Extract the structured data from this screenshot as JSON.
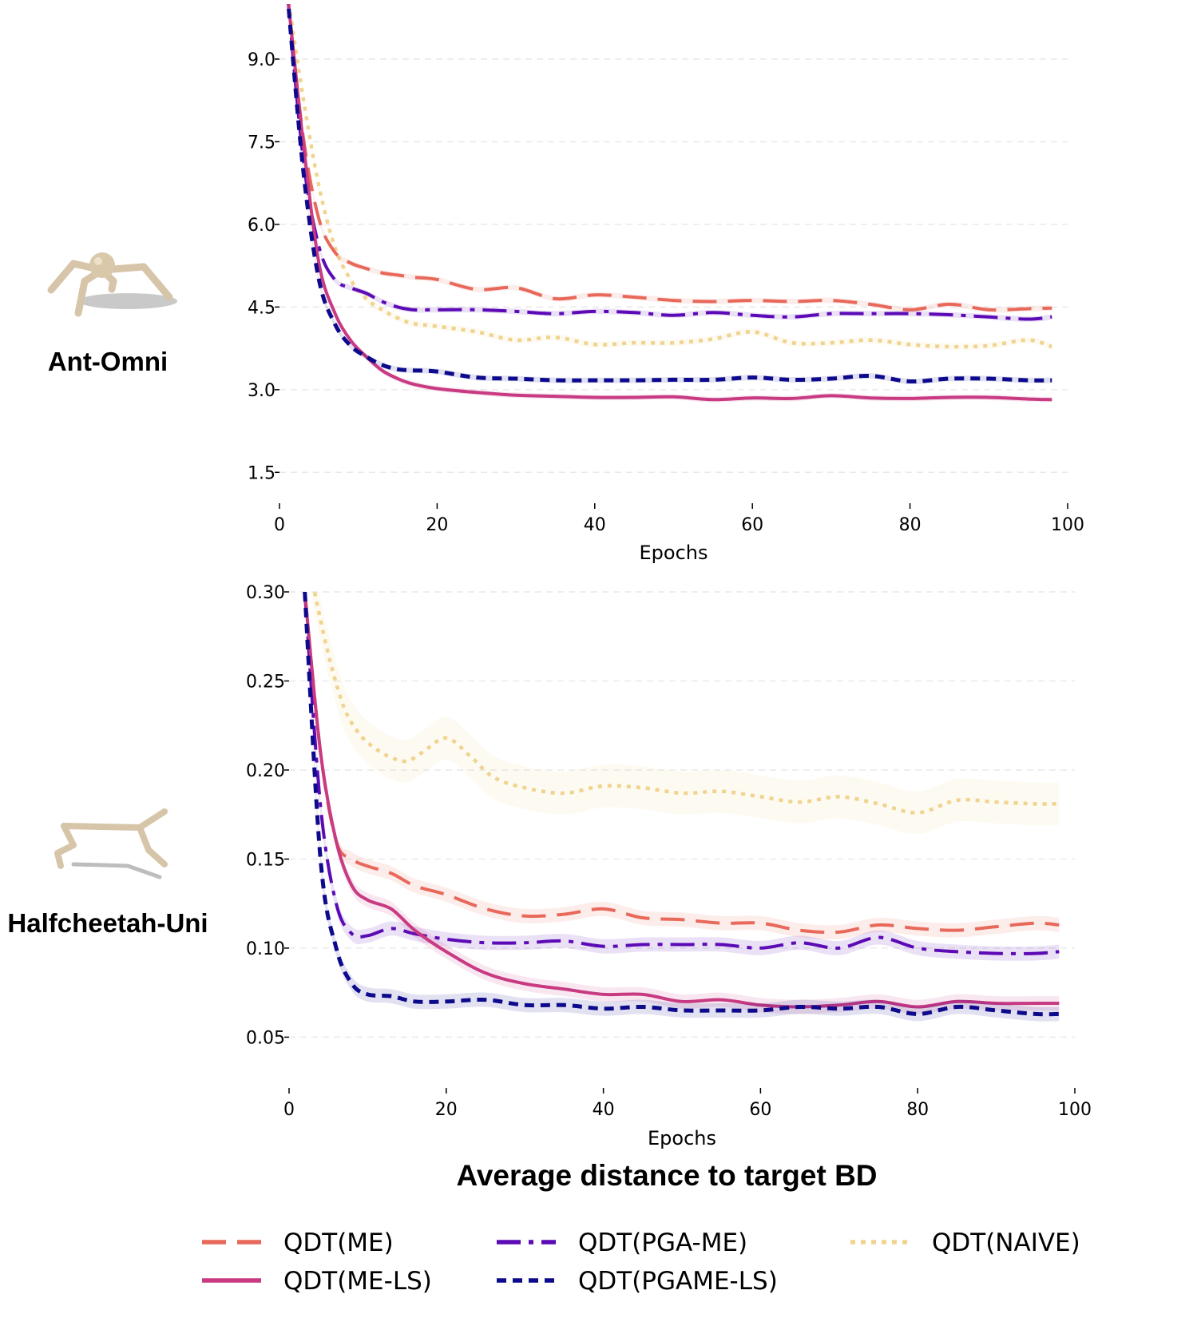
{
  "title": "Average distance to target BD",
  "legend": {
    "items": [
      {
        "key": "me",
        "label": "QDT(ME)"
      },
      {
        "key": "pga",
        "label": "QDT(PGA-ME)"
      },
      {
        "key": "naive",
        "label": "QDT(NAIVE)"
      },
      {
        "key": "mels",
        "label": "QDT(ME-LS)"
      },
      {
        "key": "pgamels",
        "label": "QDT(PGAME-LS)"
      }
    ]
  },
  "colors": {
    "me": "#e8685a",
    "pga": "#5b0ab5",
    "naive": "#f0d38e",
    "mels": "#c83a82",
    "pgamels": "#0d0a8c"
  },
  "chart_data": [
    {
      "type": "line",
      "env_label": "Ant-Omni",
      "xlabel": "Epochs",
      "ylabel": "",
      "xlim": [
        0,
        100
      ],
      "ylim": [
        1.2,
        10.0
      ],
      "xticks": [
        0,
        20,
        40,
        60,
        80,
        100
      ],
      "yticks": [
        1.5,
        3.0,
        4.5,
        6.0,
        7.5,
        9.0
      ],
      "ytick_labels": [
        "1.5",
        "3.0",
        "4.5",
        "6.0",
        "7.5",
        "9.0"
      ],
      "series": [
        {
          "key": "naive",
          "name": "QDT(NAIVE)",
          "band": 0.06,
          "x": [
            1,
            3,
            5,
            7,
            9,
            11,
            13,
            15,
            17,
            20,
            25,
            30,
            35,
            40,
            45,
            50,
            55,
            60,
            65,
            70,
            75,
            80,
            85,
            90,
            95,
            98
          ],
          "y": [
            10.2,
            8.3,
            6.7,
            5.6,
            5.0,
            4.65,
            4.45,
            4.3,
            4.2,
            4.15,
            4.05,
            3.9,
            3.95,
            3.82,
            3.85,
            3.85,
            3.92,
            4.05,
            3.85,
            3.85,
            3.9,
            3.82,
            3.78,
            3.8,
            3.9,
            3.78
          ]
        },
        {
          "key": "me",
          "name": "QDT(ME)",
          "band": 0.05,
          "x": [
            1,
            3,
            5,
            7,
            9,
            11,
            13,
            15,
            17,
            20,
            25,
            30,
            35,
            40,
            45,
            50,
            55,
            60,
            65,
            70,
            75,
            80,
            85,
            90,
            95,
            98
          ],
          "y": [
            10.2,
            7.6,
            6.1,
            5.5,
            5.3,
            5.2,
            5.12,
            5.08,
            5.04,
            5.0,
            4.82,
            4.85,
            4.65,
            4.72,
            4.68,
            4.62,
            4.6,
            4.62,
            4.6,
            4.62,
            4.55,
            4.45,
            4.55,
            4.45,
            4.47,
            4.48
          ]
        },
        {
          "key": "pga",
          "name": "QDT(PGA-ME)",
          "band": 0.05,
          "x": [
            1,
            3,
            5,
            7,
            9,
            11,
            13,
            15,
            17,
            20,
            25,
            30,
            35,
            40,
            45,
            50,
            55,
            60,
            65,
            70,
            75,
            80,
            85,
            90,
            95,
            98
          ],
          "y": [
            10.2,
            7.2,
            5.6,
            5.0,
            4.85,
            4.75,
            4.6,
            4.5,
            4.45,
            4.45,
            4.45,
            4.42,
            4.38,
            4.42,
            4.4,
            4.35,
            4.4,
            4.35,
            4.32,
            4.38,
            4.38,
            4.38,
            4.36,
            4.32,
            4.28,
            4.32
          ]
        },
        {
          "key": "mels",
          "name": "QDT(ME-LS)",
          "band": 0.05,
          "x": [
            1,
            3,
            5,
            7,
            9,
            11,
            13,
            15,
            17,
            20,
            25,
            30,
            35,
            40,
            45,
            50,
            55,
            60,
            65,
            70,
            75,
            80,
            85,
            90,
            95,
            98
          ],
          "y": [
            10.2,
            7.5,
            5.3,
            4.4,
            3.9,
            3.6,
            3.35,
            3.2,
            3.1,
            3.02,
            2.95,
            2.9,
            2.88,
            2.86,
            2.86,
            2.87,
            2.82,
            2.85,
            2.84,
            2.89,
            2.85,
            2.84,
            2.86,
            2.86,
            2.83,
            2.82
          ]
        },
        {
          "key": "pgamels",
          "name": "QDT(PGAME-LS)",
          "band": 0.05,
          "x": [
            1,
            3,
            5,
            7,
            9,
            11,
            13,
            15,
            17,
            20,
            25,
            30,
            35,
            40,
            45,
            50,
            55,
            60,
            65,
            70,
            75,
            80,
            85,
            90,
            95,
            98
          ],
          "y": [
            10.2,
            7.0,
            5.0,
            4.2,
            3.8,
            3.6,
            3.45,
            3.37,
            3.35,
            3.33,
            3.22,
            3.2,
            3.17,
            3.17,
            3.17,
            3.18,
            3.18,
            3.22,
            3.18,
            3.2,
            3.25,
            3.15,
            3.2,
            3.2,
            3.17,
            3.17
          ]
        }
      ]
    },
    {
      "type": "line",
      "env_label": "Halfcheetah-Uni",
      "xlabel": "Epochs",
      "ylabel": "",
      "xlim": [
        0,
        100
      ],
      "ylim": [
        0.03,
        0.3
      ],
      "xticks": [
        0,
        20,
        40,
        60,
        80,
        100
      ],
      "yticks": [
        0.05,
        0.1,
        0.15,
        0.2,
        0.25,
        0.3
      ],
      "ytick_labels": [
        "0.05",
        "0.10",
        "0.15",
        "0.20",
        "0.25",
        "0.30"
      ],
      "series": [
        {
          "key": "naive",
          "name": "QDT(NAIVE)",
          "band": 0.012,
          "x": [
            3,
            5,
            7,
            9,
            11,
            13,
            15,
            17,
            20,
            23,
            26,
            30,
            35,
            40,
            45,
            50,
            55,
            60,
            65,
            70,
            75,
            80,
            85,
            90,
            95,
            98
          ],
          "y": [
            0.305,
            0.265,
            0.235,
            0.22,
            0.212,
            0.207,
            0.205,
            0.21,
            0.218,
            0.208,
            0.196,
            0.19,
            0.187,
            0.191,
            0.19,
            0.187,
            0.188,
            0.185,
            0.182,
            0.185,
            0.181,
            0.176,
            0.183,
            0.182,
            0.181,
            0.181
          ]
        },
        {
          "key": "me",
          "name": "QDT(ME)",
          "band": 0.004,
          "x": [
            2,
            4,
            6,
            8,
            10,
            13,
            16,
            20,
            25,
            30,
            35,
            40,
            45,
            50,
            55,
            60,
            65,
            70,
            75,
            80,
            85,
            90,
            95,
            98
          ],
          "y": [
            0.3,
            0.21,
            0.16,
            0.15,
            0.146,
            0.142,
            0.135,
            0.13,
            0.122,
            0.118,
            0.119,
            0.122,
            0.117,
            0.116,
            0.114,
            0.114,
            0.11,
            0.109,
            0.113,
            0.111,
            0.11,
            0.112,
            0.114,
            0.113
          ]
        },
        {
          "key": "pga",
          "name": "QDT(PGA-ME)",
          "band": 0.004,
          "x": [
            2,
            4,
            6,
            8,
            10,
            13,
            16,
            20,
            25,
            30,
            35,
            40,
            45,
            50,
            55,
            60,
            65,
            70,
            75,
            80,
            85,
            90,
            95,
            98
          ],
          "y": [
            0.3,
            0.18,
            0.125,
            0.108,
            0.107,
            0.111,
            0.108,
            0.105,
            0.103,
            0.103,
            0.104,
            0.101,
            0.102,
            0.102,
            0.102,
            0.1,
            0.103,
            0.1,
            0.106,
            0.1,
            0.098,
            0.097,
            0.097,
            0.098
          ]
        },
        {
          "key": "mels",
          "name": "QDT(ME-LS)",
          "band": 0.004,
          "x": [
            2,
            4,
            6,
            8,
            10,
            13,
            16,
            20,
            25,
            30,
            35,
            40,
            45,
            50,
            55,
            60,
            65,
            70,
            75,
            80,
            85,
            90,
            95,
            98
          ],
          "y": [
            0.3,
            0.21,
            0.16,
            0.135,
            0.127,
            0.122,
            0.11,
            0.098,
            0.086,
            0.08,
            0.077,
            0.074,
            0.074,
            0.07,
            0.071,
            0.068,
            0.067,
            0.068,
            0.07,
            0.067,
            0.07,
            0.069,
            0.069,
            0.069
          ]
        },
        {
          "key": "pgamels",
          "name": "QDT(PGAME-LS)",
          "band": 0.004,
          "x": [
            2,
            4,
            6,
            8,
            10,
            13,
            16,
            20,
            25,
            30,
            35,
            40,
            45,
            50,
            55,
            60,
            65,
            70,
            75,
            80,
            85,
            90,
            95,
            98
          ],
          "y": [
            0.3,
            0.15,
            0.1,
            0.08,
            0.074,
            0.073,
            0.07,
            0.07,
            0.071,
            0.068,
            0.068,
            0.066,
            0.067,
            0.065,
            0.065,
            0.065,
            0.067,
            0.066,
            0.067,
            0.063,
            0.067,
            0.065,
            0.063,
            0.063
          ]
        }
      ]
    }
  ]
}
